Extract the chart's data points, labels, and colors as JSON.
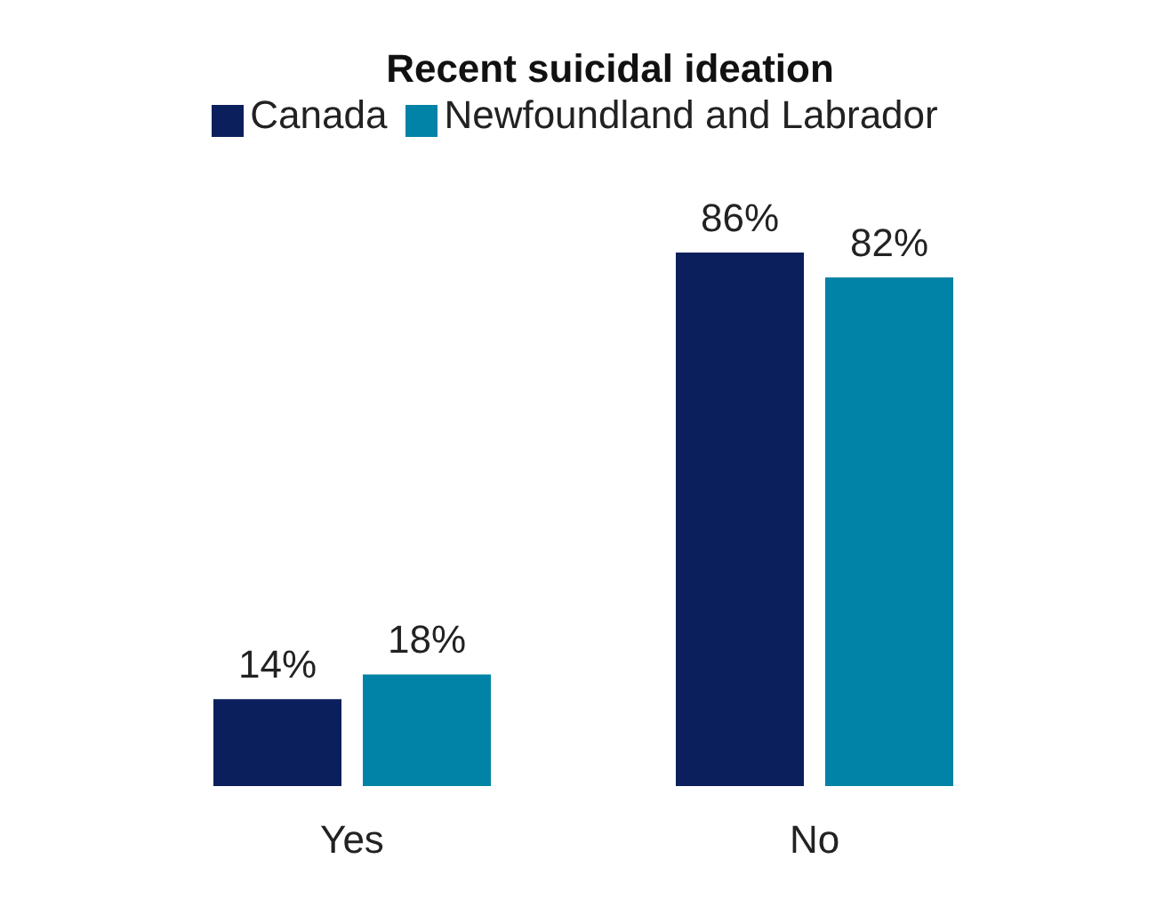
{
  "chart_data": {
    "type": "bar",
    "title": "Recent suicidal ideation",
    "categories": [
      "Yes",
      "No"
    ],
    "series": [
      {
        "name": "Canada",
        "color": "#0b1f5c",
        "values": [
          14,
          86
        ],
        "value_labels": [
          "14%",
          "86%"
        ]
      },
      {
        "name": "Newfoundland and Labrador",
        "color": "#0083a6",
        "values": [
          18,
          82
        ],
        "value_labels": [
          "18%",
          "82%"
        ]
      }
    ],
    "legend": "top",
    "grid": false
  }
}
